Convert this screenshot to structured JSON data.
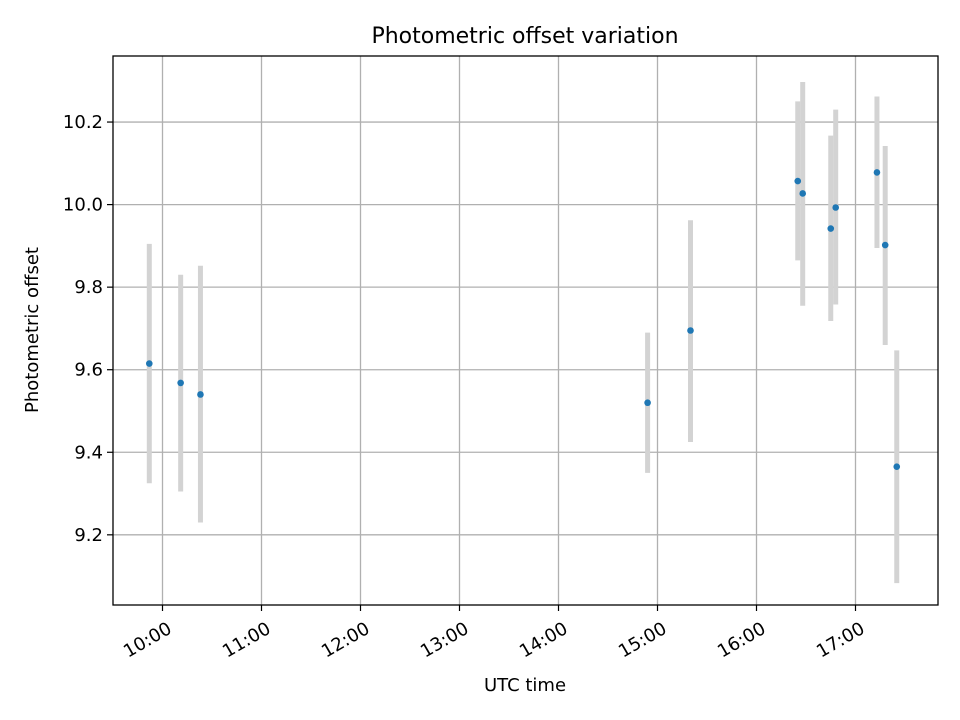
{
  "chart_data": {
    "type": "scatter",
    "title": "Photometric offset variation",
    "xlabel": "UTC time",
    "ylabel": "Photometric offset",
    "grid": true,
    "xlim": [
      "09:30",
      "17:50"
    ],
    "ylim": [
      9.03,
      10.36
    ],
    "x_ticks": [
      "10:00",
      "11:00",
      "12:00",
      "13:00",
      "14:00",
      "15:00",
      "16:00",
      "17:00"
    ],
    "y_ticks": [
      "9.2",
      "9.4",
      "9.6",
      "9.8",
      "10.0",
      "10.2"
    ],
    "colors": {
      "marker": "#1f77b4",
      "errorbar": "#d3d3d3"
    },
    "series": [
      {
        "points": [
          {
            "x": "09:52",
            "y": 9.615,
            "ylow": 9.325,
            "yhigh": 9.905
          },
          {
            "x": "10:11",
            "y": 9.568,
            "ylow": 9.305,
            "yhigh": 9.83
          },
          {
            "x": "10:23",
            "y": 9.54,
            "ylow": 9.23,
            "yhigh": 9.852
          },
          {
            "x": "14:54",
            "y": 9.52,
            "ylow": 9.35,
            "yhigh": 9.69
          },
          {
            "x": "15:20",
            "y": 9.695,
            "ylow": 9.425,
            "yhigh": 9.962
          },
          {
            "x": "16:25",
            "y": 10.057,
            "ylow": 9.865,
            "yhigh": 10.25
          },
          {
            "x": "16:28",
            "y": 10.027,
            "ylow": 9.755,
            "yhigh": 10.297
          },
          {
            "x": "16:45",
            "y": 9.942,
            "ylow": 9.718,
            "yhigh": 10.167
          },
          {
            "x": "16:48",
            "y": 9.993,
            "ylow": 9.758,
            "yhigh": 10.23
          },
          {
            "x": "17:13",
            "y": 10.078,
            "ylow": 9.895,
            "yhigh": 10.262
          },
          {
            "x": "17:18",
            "y": 9.902,
            "ylow": 9.66,
            "yhigh": 10.142
          },
          {
            "x": "17:25",
            "y": 9.365,
            "ylow": 9.083,
            "yhigh": 9.647
          }
        ]
      }
    ]
  }
}
